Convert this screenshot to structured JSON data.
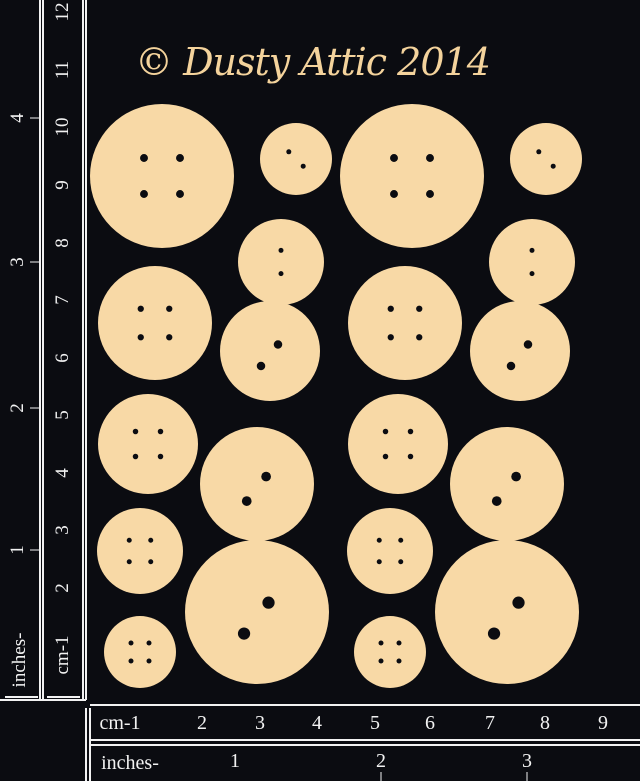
{
  "title": "© Dusty Attic 2014",
  "colors": {
    "background": "#0b0c11",
    "chipboard": "#f8d9a6",
    "title": "#f4d39c",
    "ruler_lines": "#f2f2f2"
  },
  "rulers": {
    "vertical_inches": {
      "prefix": "inches-",
      "labels": [
        "1",
        "2",
        "3",
        "4"
      ]
    },
    "vertical_cm": {
      "prefix": "cm-1",
      "labels": [
        "2",
        "3",
        "4",
        "5",
        "6",
        "7",
        "8",
        "9",
        "10",
        "11",
        "12"
      ]
    },
    "horizontal_cm": {
      "prefix": "cm-1",
      "labels": [
        "2",
        "3",
        "4",
        "5",
        "6",
        "7",
        "8",
        "9"
      ]
    },
    "horizontal_inches": {
      "prefix": "inches-",
      "labels": [
        "1",
        "2",
        "3"
      ]
    }
  },
  "buttons": {
    "count": 20,
    "hole_types": [
      "4-hole",
      "2-hole"
    ]
  }
}
